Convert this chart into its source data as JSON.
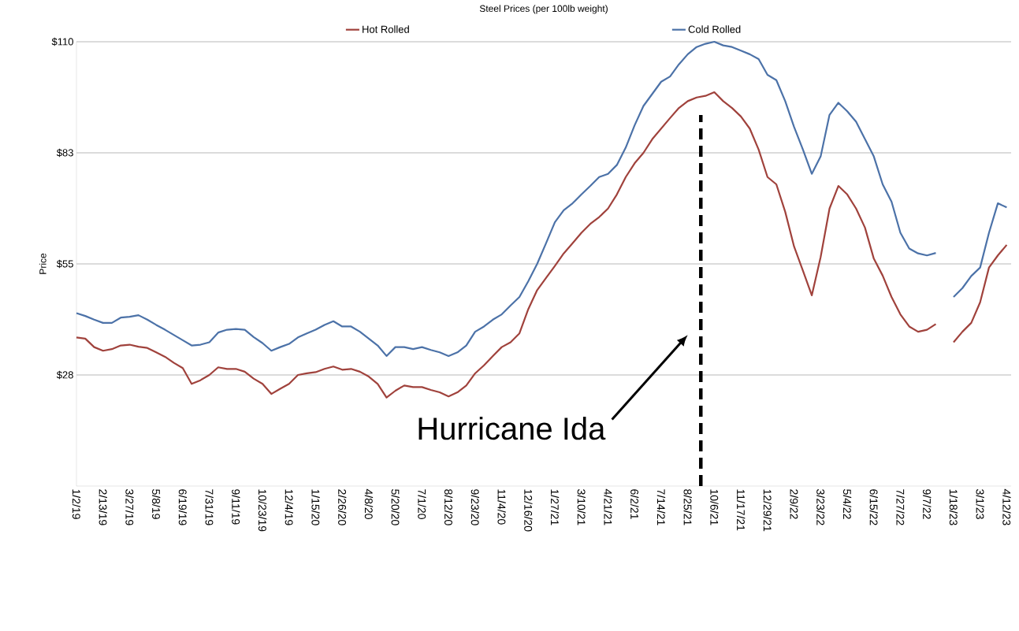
{
  "chart_data": {
    "type": "line",
    "title": "Steel Prices (per 100lb weight)",
    "ylabel": "Price",
    "categories": [
      "1/2/19",
      null,
      null,
      "2/13/19",
      null,
      null,
      "3/27/19",
      null,
      null,
      "5/8/19",
      null,
      null,
      "6/19/19",
      null,
      null,
      "7/31/19",
      null,
      null,
      "9/11/19",
      null,
      null,
      "10/23/19",
      null,
      null,
      "12/4/19",
      null,
      null,
      "1/15/20",
      null,
      null,
      "2/26/20",
      null,
      null,
      "4/8/20",
      null,
      null,
      "5/20/20",
      null,
      null,
      "7/1/20",
      null,
      null,
      "8/12/20",
      null,
      null,
      "9/23/20",
      null,
      null,
      "11/4/20",
      null,
      null,
      "12/16/20",
      null,
      null,
      "1/27/21",
      null,
      null,
      "3/10/21",
      null,
      null,
      "4/21/21",
      null,
      null,
      "6/2/21",
      null,
      null,
      "7/14/21",
      null,
      null,
      "8/25/21",
      null,
      null,
      "10/6/21",
      null,
      null,
      "11/17/21",
      null,
      null,
      "12/29/21",
      null,
      null,
      "2/9/22",
      null,
      null,
      "3/23/22",
      null,
      null,
      "5/4/22",
      null,
      null,
      "6/15/22",
      null,
      null,
      "7/27/22",
      null,
      null,
      "9/7/22",
      null,
      null,
      "1/18/23",
      null,
      null,
      "3/1/23",
      null,
      null,
      "4/12/23"
    ],
    "series": [
      {
        "name": "Hot Rolled",
        "color": "#a0423c",
        "values": [
          36.8,
          36.5,
          34.4,
          33.5,
          33.9,
          34.8,
          35.0,
          34.5,
          34.2,
          33.1,
          32.0,
          30.5,
          29.2,
          25.3,
          26.2,
          27.5,
          29.4,
          29.0,
          29.0,
          28.3,
          26.6,
          25.3,
          22.8,
          24.1,
          25.3,
          27.5,
          27.9,
          28.2,
          29.0,
          29.6,
          28.8,
          29.0,
          28.3,
          27.1,
          25.3,
          21.9,
          23.6,
          24.9,
          24.5,
          24.5,
          23.8,
          23.2,
          22.2,
          23.2,
          24.9,
          27.9,
          29.9,
          32.2,
          34.4,
          35.6,
          37.8,
          43.8,
          48.5,
          51.5,
          54.5,
          57.6,
          60.1,
          62.7,
          64.9,
          66.6,
          68.7,
          72.2,
          76.5,
          79.9,
          82.5,
          85.9,
          88.5,
          91.1,
          93.6,
          95.3,
          96.2,
          96.6,
          97.5,
          95.3,
          93.6,
          91.5,
          88.5,
          83.3,
          76.5,
          74.7,
          67.9,
          59.3,
          53.3,
          47.2,
          56.7,
          68.7,
          74.3,
          72.2,
          68.7,
          64.0,
          56.3,
          52.1,
          46.8,
          42.5,
          39.5,
          38.2,
          38.7,
          40.1,
          null,
          35.6,
          38.2,
          40.4,
          45.5,
          54.1,
          57.1,
          59.7
        ]
      },
      {
        "name": "Cold Rolled",
        "color": "#4c72a8",
        "values": [
          42.8,
          42.1,
          41.2,
          40.4,
          40.4,
          41.7,
          41.9,
          42.3,
          41.2,
          39.9,
          38.7,
          37.4,
          36.1,
          34.8,
          35.0,
          35.6,
          38.0,
          38.7,
          38.9,
          38.7,
          36.9,
          35.4,
          33.5,
          34.4,
          35.2,
          36.8,
          37.8,
          38.7,
          39.9,
          40.8,
          39.5,
          39.5,
          38.2,
          36.5,
          34.8,
          32.2,
          34.4,
          34.4,
          33.9,
          34.4,
          33.7,
          33.1,
          32.2,
          33.1,
          34.8,
          38.2,
          39.5,
          41.2,
          42.5,
          44.7,
          46.8,
          50.7,
          55.0,
          60.1,
          65.3,
          68.3,
          70.0,
          72.2,
          74.3,
          76.5,
          77.3,
          79.5,
          83.8,
          89.3,
          94.1,
          97.1,
          100.1,
          101.4,
          104.4,
          106.9,
          108.7,
          109.5,
          110.0,
          109.1,
          108.7,
          107.8,
          106.9,
          105.7,
          101.8,
          100.5,
          95.3,
          88.9,
          83.3,
          77.3,
          81.6,
          91.9,
          94.9,
          92.8,
          90.2,
          85.9,
          81.6,
          74.7,
          70.4,
          62.7,
          58.8,
          57.6,
          57.1,
          57.7,
          null,
          46.8,
          49.0,
          52.0,
          54.1,
          62.7,
          70.0,
          69.0
        ]
      }
    ],
    "ylim": [
      0,
      110
    ],
    "yticks": [
      {
        "value": 27.5,
        "label": "$28"
      },
      {
        "value": 55,
        "label": "$55"
      },
      {
        "value": 82.5,
        "label": "$83"
      },
      {
        "value": 110,
        "label": "$110"
      }
    ],
    "grid": "y",
    "legend": "top",
    "marker": "none",
    "line_style": "solid",
    "annotations": [
      "Hurricane Ida"
    ]
  }
}
